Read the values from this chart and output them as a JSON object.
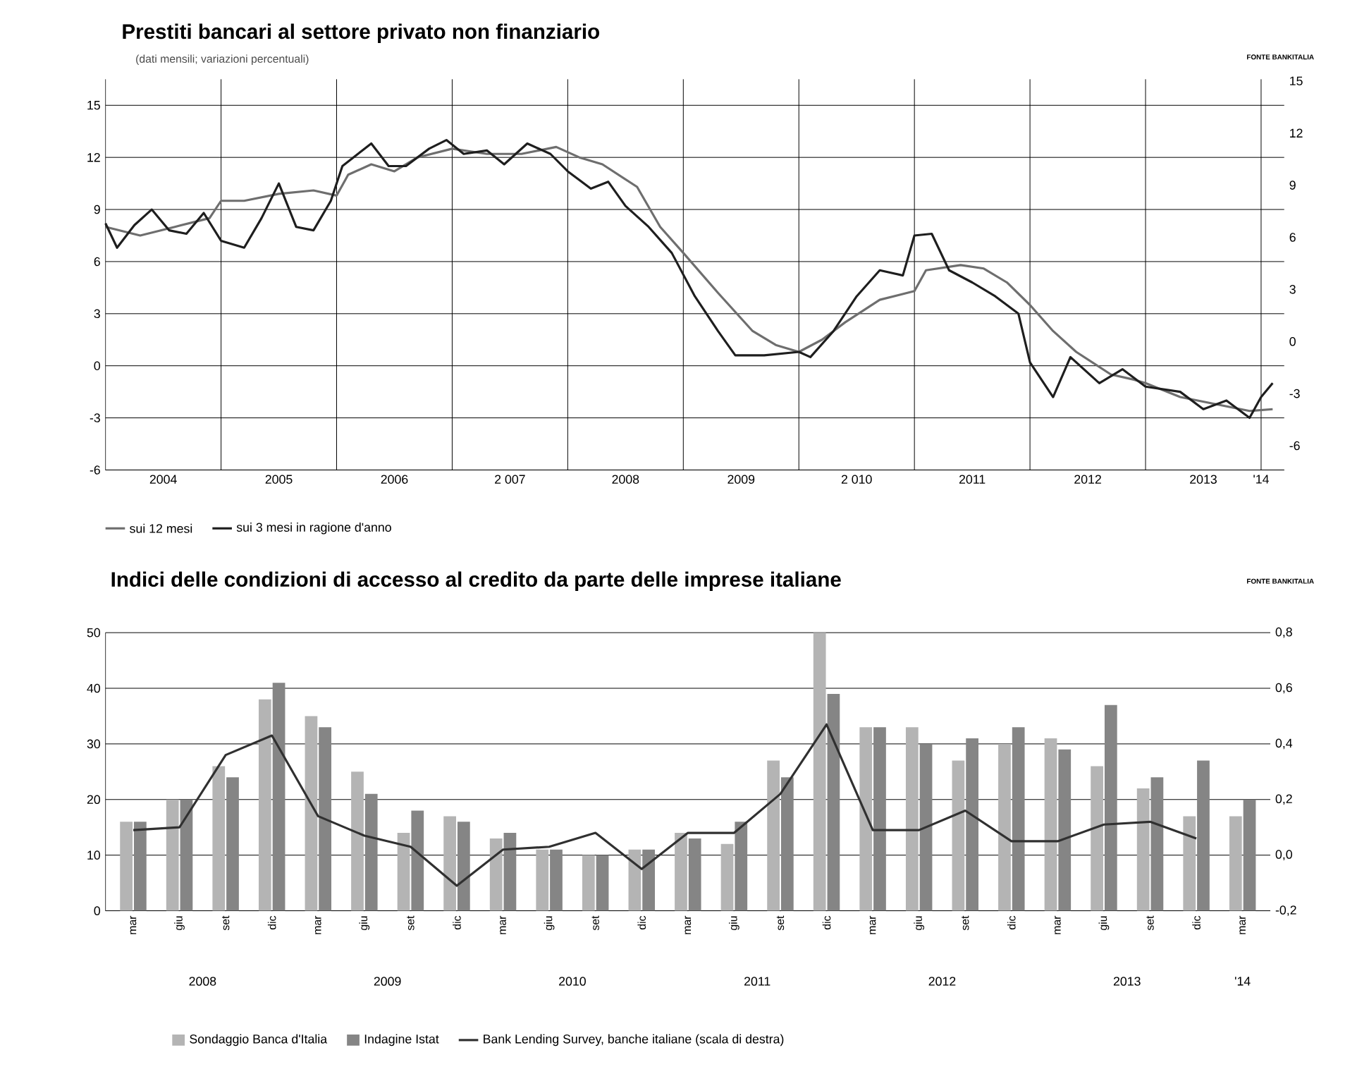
{
  "chart_data": [
    {
      "type": "line",
      "title": "Prestiti bancari al settore privato non finanziario",
      "subtitle": "(dati mensili; variazioni percentuali)",
      "annotations": [
        "FONTE BANKITALIA"
      ],
      "xlim": [
        2004,
        2014.2
      ],
      "xticks": [
        {
          "value": 2005,
          "label": null
        },
        {
          "value": 2006,
          "label": null
        },
        {
          "value": 2007,
          "label": null
        },
        {
          "value": 2008,
          "label": null
        },
        {
          "value": 2009,
          "label": null
        },
        {
          "value": 2010,
          "label": null
        },
        {
          "value": 2011,
          "label": null
        },
        {
          "value": 2012,
          "label": null
        },
        {
          "value": 2013,
          "label": null
        },
        {
          "value": 2014,
          "label": null
        },
        {
          "value": 2004.5,
          "label": "2004"
        },
        {
          "value": 2005.5,
          "label": "2005"
        },
        {
          "value": 2006.5,
          "label": "2006"
        },
        {
          "value": 2007.5,
          "label": "2 007"
        },
        {
          "value": 2008.5,
          "label": "2008"
        },
        {
          "value": 2009.5,
          "label": "2009"
        },
        {
          "value": 2010.5,
          "label": "2 010"
        },
        {
          "value": 2011.5,
          "label": "2011"
        },
        {
          "value": 2012.5,
          "label": "2012"
        },
        {
          "value": 2013.5,
          "label": "2013"
        },
        {
          "value": 2014,
          "label": "'14"
        }
      ],
      "ylim": [
        -6,
        16.5
      ],
      "yticks": [
        -6,
        -3,
        0,
        3,
        6,
        9,
        12,
        15
      ],
      "y2lim": [
        -7.4,
        15.1
      ],
      "y2ticks": [
        -6,
        -3,
        0,
        3,
        6,
        9,
        12,
        15
      ],
      "grid": true,
      "legend": "bottom left",
      "line_style": "solid",
      "series": [
        {
          "name": "sui 12 mesi",
          "color": "#6e6e6e",
          "x": [
            2004.0,
            2004.3,
            2004.6,
            2004.9,
            2005.0,
            2005.2,
            2005.5,
            2005.8,
            2006.0,
            2006.1,
            2006.3,
            2006.5,
            2006.7,
            2007.0,
            2007.3,
            2007.6,
            2007.9,
            2008.1,
            2008.3,
            2008.6,
            2008.8,
            2009.0,
            2009.3,
            2009.6,
            2009.8,
            2010.0,
            2010.2,
            2010.4,
            2010.7,
            2011.0,
            2011.1,
            2011.4,
            2011.6,
            2011.8,
            2012.0,
            2012.2,
            2012.4,
            2012.7,
            2012.9,
            2013.0,
            2013.3,
            2013.6,
            2013.9,
            2014.1
          ],
          "values": [
            8.0,
            7.5,
            8.0,
            8.5,
            9.5,
            9.5,
            9.9,
            10.1,
            9.8,
            11.0,
            11.6,
            11.2,
            12.0,
            12.5,
            12.2,
            12.2,
            12.6,
            12.0,
            11.6,
            10.3,
            8.0,
            6.5,
            4.2,
            2.0,
            1.2,
            0.8,
            1.5,
            2.5,
            3.8,
            4.3,
            5.5,
            5.8,
            5.6,
            4.8,
            3.5,
            2.0,
            0.8,
            -0.5,
            -0.8,
            -1.0,
            -1.8,
            -2.2,
            -2.6,
            -2.5
          ]
        },
        {
          "name": "sui 3 mesi in ragione d'anno",
          "color": "#1e1e1e",
          "x": [
            2004.0,
            2004.1,
            2004.25,
            2004.4,
            2004.55,
            2004.7,
            2004.85,
            2005.0,
            2005.2,
            2005.35,
            2005.5,
            2005.65,
            2005.8,
            2005.95,
            2006.05,
            2006.3,
            2006.45,
            2006.6,
            2006.8,
            2006.95,
            2007.1,
            2007.3,
            2007.45,
            2007.65,
            2007.85,
            2008.0,
            2008.2,
            2008.35,
            2008.5,
            2008.7,
            2008.9,
            2009.1,
            2009.3,
            2009.45,
            2009.7,
            2010.0,
            2010.1,
            2010.3,
            2010.5,
            2010.7,
            2010.9,
            2011.0,
            2011.15,
            2011.3,
            2011.5,
            2011.7,
            2011.9,
            2012.0,
            2012.2,
            2012.35,
            2012.6,
            2012.8,
            2013.0,
            2013.3,
            2013.5,
            2013.7,
            2013.9,
            2014.0,
            2014.1
          ],
          "values": [
            8.2,
            6.8,
            8.1,
            9.0,
            7.8,
            7.6,
            8.8,
            7.2,
            6.8,
            8.5,
            10.5,
            8.0,
            7.8,
            9.5,
            11.5,
            12.8,
            11.5,
            11.5,
            12.5,
            13.0,
            12.2,
            12.4,
            11.6,
            12.8,
            12.2,
            11.2,
            10.2,
            10.6,
            9.2,
            8.0,
            6.5,
            4.0,
            2.0,
            0.6,
            0.6,
            0.8,
            0.5,
            2.0,
            4.0,
            5.5,
            5.2,
            7.5,
            7.6,
            5.5,
            4.8,
            4.0,
            3.0,
            0.2,
            -1.8,
            0.5,
            -1.0,
            -0.2,
            -1.2,
            -1.5,
            -2.5,
            -2.0,
            -3.0,
            -1.8,
            -1.0
          ]
        }
      ]
    },
    {
      "type": "bar",
      "title": "Indici delle condizioni di accesso al credito da parte delle imprese italiane",
      "annotations": [
        "FONTE BANKITALIA",
        "2008",
        "2009",
        "2010",
        "2011",
        "2012",
        "2013",
        "'14"
      ],
      "categories": [
        "mar",
        "giu",
        "set",
        "dic",
        "mar",
        "giu",
        "set",
        "dic",
        "mar",
        "giu",
        "set",
        "dic",
        "mar",
        "giu",
        "set",
        "dic",
        "mar",
        "giu",
        "set",
        "dic",
        "mar",
        "giu",
        "set",
        "dic",
        "mar"
      ],
      "ylim": [
        0,
        50
      ],
      "yticks": [
        0,
        10,
        20,
        30,
        40,
        50
      ],
      "y2lim": [
        -0.2,
        0.8
      ],
      "y2ticks": [
        {
          "value": -0.2,
          "label": "-0,2"
        },
        {
          "value": 0,
          "label": "0,0"
        },
        {
          "value": 0.2,
          "label": "0,2"
        },
        {
          "value": 0.4,
          "label": "0,4"
        },
        {
          "value": 0.6,
          "label": "0,6"
        },
        {
          "value": 0.8,
          "label": "0,8"
        }
      ],
      "grid": "y",
      "legend": "bottom",
      "series": [
        {
          "name": "Sondaggio Banca d'Italia",
          "color": "#b4b4b4",
          "values": [
            16,
            20,
            26,
            38,
            35,
            25,
            14,
            17,
            13,
            11,
            10,
            11,
            14,
            12,
            27,
            50,
            33,
            33,
            27,
            30,
            31,
            26,
            22,
            17,
            17
          ]
        },
        {
          "name": "Indagine Istat",
          "color": "#858585",
          "values": [
            16,
            20,
            24,
            41,
            33,
            21,
            18,
            16,
            14,
            11,
            10,
            11,
            13,
            16,
            24,
            39,
            33,
            30,
            31,
            33,
            29,
            37,
            24,
            27,
            20
          ]
        },
        {
          "name": "Bank Lending Survey, banche italiane (scala di destra)",
          "type": "line",
          "axis": "y2",
          "color": "#303030",
          "values": [
            0.09,
            0.1,
            0.36,
            0.43,
            0.14,
            0.07,
            0.03,
            -0.11,
            0.02,
            0.03,
            0.08,
            -0.05,
            0.08,
            0.08,
            0.22,
            0.47,
            0.09,
            0.09,
            0.16,
            0.05,
            0.05,
            0.11,
            0.12,
            0.06,
            null
          ]
        }
      ]
    }
  ]
}
